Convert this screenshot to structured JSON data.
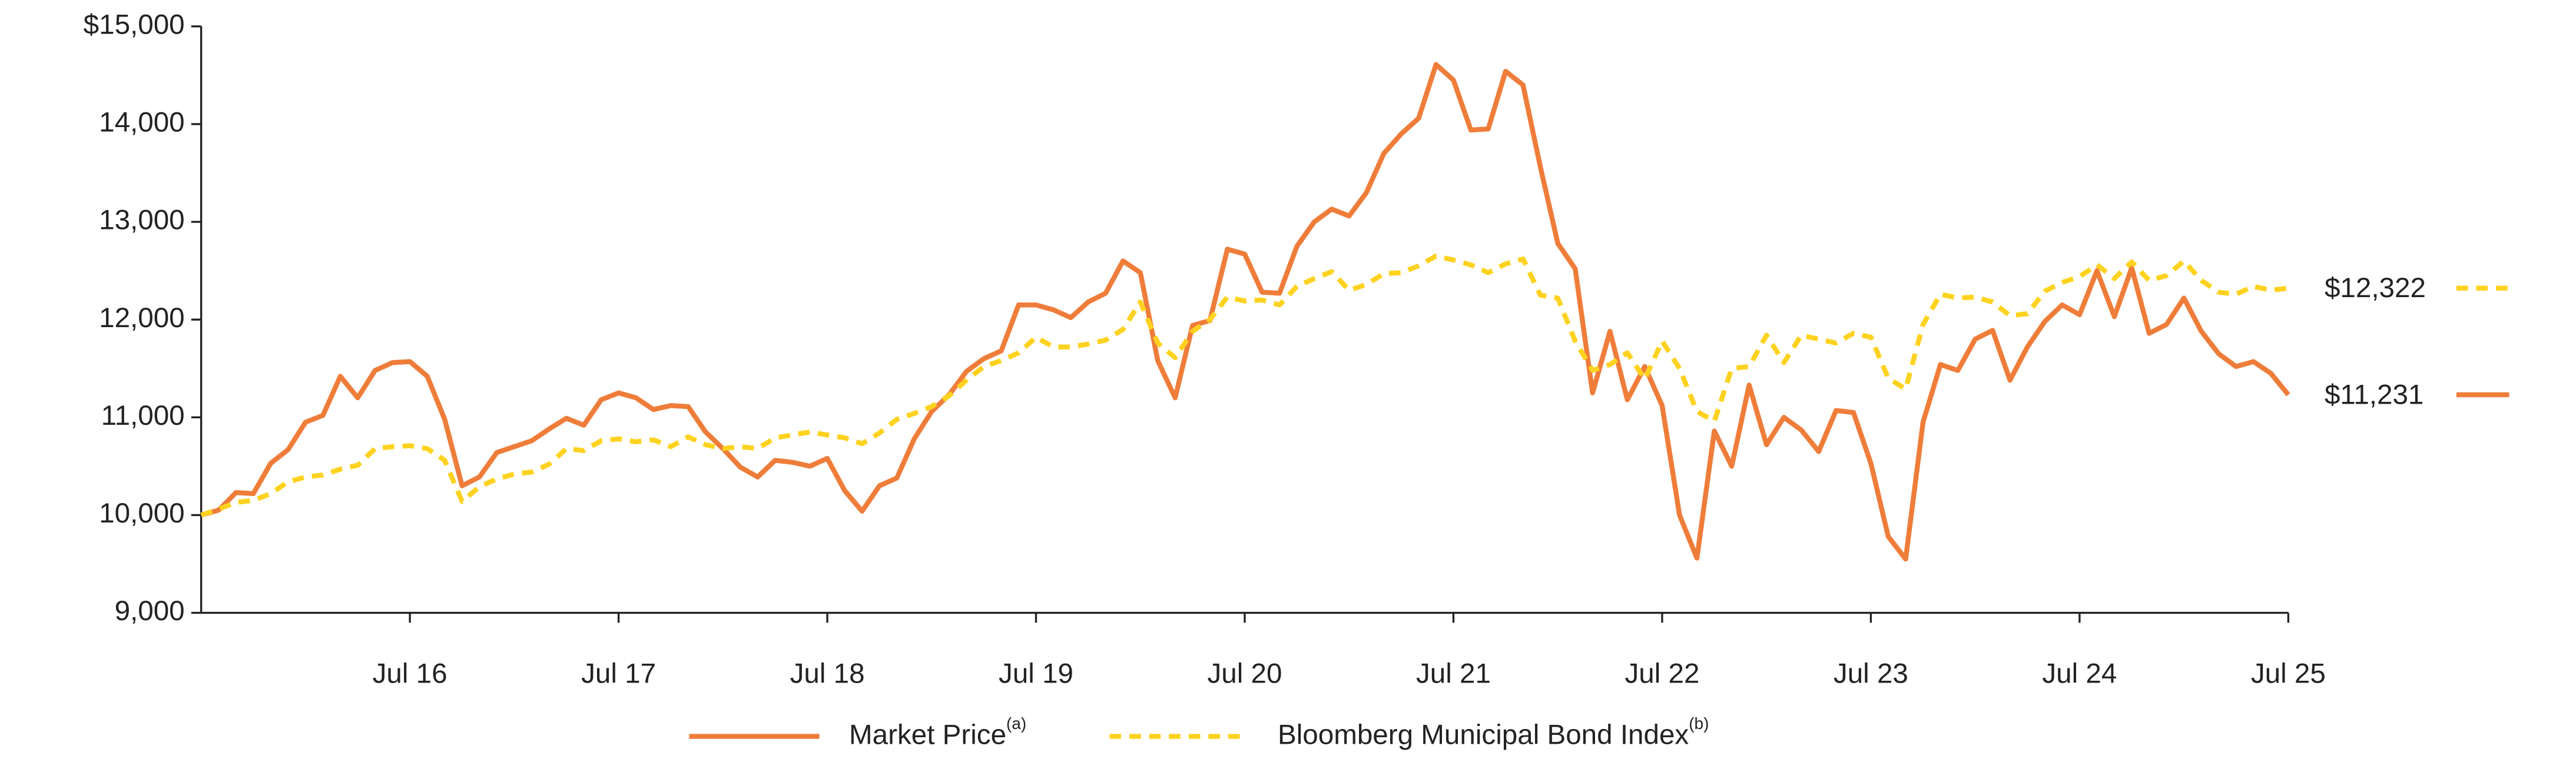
{
  "chart_data": {
    "type": "line",
    "categories": [
      null,
      null,
      null,
      null,
      null,
      null,
      null,
      null,
      null,
      null,
      null,
      null,
      "Jul 16",
      null,
      null,
      null,
      null,
      null,
      null,
      null,
      null,
      null,
      null,
      null,
      "Jul 17",
      null,
      null,
      null,
      null,
      null,
      null,
      null,
      null,
      null,
      null,
      null,
      "Jul 18",
      null,
      null,
      null,
      null,
      null,
      null,
      null,
      null,
      null,
      null,
      null,
      "Jul 19",
      null,
      null,
      null,
      null,
      null,
      null,
      null,
      null,
      null,
      null,
      null,
      "Jul 20",
      null,
      null,
      null,
      null,
      null,
      null,
      null,
      null,
      null,
      null,
      null,
      "Jul 21",
      null,
      null,
      null,
      null,
      null,
      null,
      null,
      null,
      null,
      null,
      null,
      "Jul 22",
      null,
      null,
      null,
      null,
      null,
      null,
      null,
      null,
      null,
      null,
      null,
      "Jul 23",
      null,
      null,
      null,
      null,
      null,
      null,
      null,
      null,
      null,
      null,
      null,
      "Jul 24",
      null,
      null,
      null,
      null,
      null,
      null,
      null,
      null,
      null,
      null,
      null,
      "Jul 25"
    ],
    "series": [
      {
        "name": "Market Price",
        "name_note": "(a)",
        "color": "#ef7d3a",
        "dashed": false,
        "end_label": "$11,231",
        "values": [
          10000,
          10050,
          10230,
          10220,
          10530,
          10670,
          10950,
          11020,
          11420,
          11200,
          11480,
          11560,
          11570,
          11420,
          10980,
          10300,
          10390,
          10640,
          10700,
          10760,
          10880,
          10990,
          10920,
          11180,
          11250,
          11200,
          11080,
          11120,
          11110,
          10850,
          10680,
          10490,
          10390,
          10560,
          10540,
          10500,
          10580,
          10250,
          10040,
          10300,
          10380,
          10780,
          11060,
          11230,
          11470,
          11600,
          11680,
          12150,
          12150,
          12100,
          12020,
          12180,
          12270,
          12600,
          12480,
          11580,
          11200,
          11940,
          11990,
          12720,
          12670,
          12280,
          12270,
          12750,
          13000,
          13130,
          13060,
          13300,
          13700,
          13900,
          14060,
          14610,
          14450,
          13940,
          13950,
          14540,
          14400,
          13560,
          12780,
          12520,
          11250,
          11880,
          11180,
          11520,
          11120,
          10000,
          9560,
          10860,
          10500,
          11330,
          10720,
          11000,
          10870,
          10650,
          11070,
          11050,
          10530,
          9780,
          9550,
          10950,
          11540,
          11480,
          11800,
          11890,
          11380,
          11720,
          11980,
          12150,
          12050,
          12500,
          12030,
          12530,
          11860,
          11950,
          12220,
          11880,
          11650,
          11520,
          11570,
          11450,
          11231
        ]
      },
      {
        "name": "Bloomberg Municipal Bond Index",
        "name_note": "(b)",
        "color": "#ffd21f",
        "dashed": true,
        "end_label": "$12,322",
        "values": [
          10000,
          10060,
          10130,
          10150,
          10220,
          10340,
          10390,
          10410,
          10470,
          10510,
          10680,
          10700,
          10710,
          10680,
          10560,
          10140,
          10290,
          10370,
          10420,
          10440,
          10520,
          10680,
          10660,
          10760,
          10780,
          10750,
          10770,
          10700,
          10800,
          10720,
          10680,
          10700,
          10680,
          10790,
          10820,
          10850,
          10820,
          10790,
          10730,
          10840,
          10980,
          11040,
          11110,
          11220,
          11380,
          11520,
          11580,
          11660,
          11820,
          11720,
          11720,
          11750,
          11790,
          11900,
          12180,
          11760,
          11610,
          11880,
          12000,
          12230,
          12190,
          12200,
          12150,
          12340,
          12420,
          12490,
          12300,
          12360,
          12470,
          12480,
          12550,
          12650,
          12610,
          12560,
          12480,
          12570,
          12620,
          12250,
          12220,
          11780,
          11480,
          11540,
          11660,
          11390,
          11780,
          11500,
          11060,
          10960,
          11500,
          11520,
          11840,
          11560,
          11840,
          11800,
          11760,
          11860,
          11820,
          11400,
          11290,
          11950,
          12260,
          12220,
          12230,
          12180,
          12040,
          12060,
          12290,
          12380,
          12440,
          12560,
          12420,
          12590,
          12400,
          12450,
          12600,
          12400,
          12280,
          12260,
          12340,
          12300,
          12322
        ]
      }
    ],
    "ylim": [
      9000,
      15000
    ],
    "yticks": [
      {
        "value": 9000,
        "label": "9,000"
      },
      {
        "value": 10000,
        "label": "10,000"
      },
      {
        "value": 11000,
        "label": "11,000"
      },
      {
        "value": 12000,
        "label": "12,000"
      },
      {
        "value": 13000,
        "label": "13,000"
      },
      {
        "value": 14000,
        "label": "14,000"
      },
      {
        "value": 15000,
        "label": "$15,000"
      }
    ],
    "legend": "bottom"
  }
}
